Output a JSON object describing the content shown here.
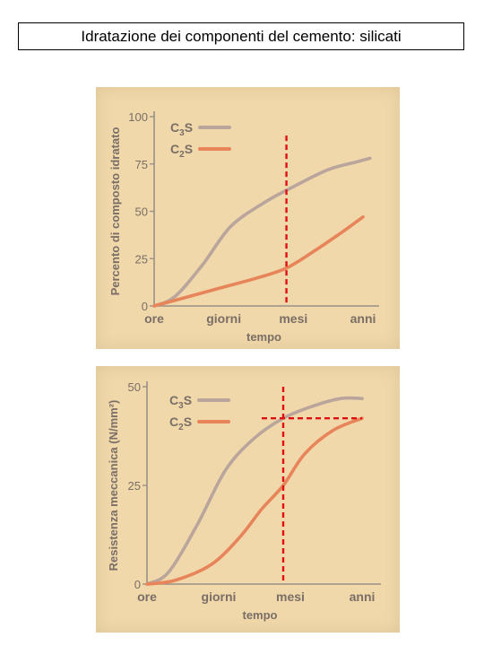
{
  "title": "Idratazione dei componenti del cemento: silicati",
  "colors": {
    "panel_bg": "#f0d8aa",
    "axis": "#9a9088",
    "text": "#7a6e66",
    "c3s": "#b9a59b",
    "c2s": "#e8845a",
    "guide": "#e01010"
  },
  "chart_data": [
    {
      "type": "line",
      "ylabel": "Percento di composto idratato",
      "xlabel": "tempo",
      "x_categories": [
        "ore",
        "giorni",
        "mesi",
        "anni"
      ],
      "yticks": [
        "0",
        "25",
        "50",
        "75",
        "100"
      ],
      "ylim": [
        0,
        100
      ],
      "xlim": [
        0,
        3
      ],
      "grid": false,
      "legend": "top-left",
      "series": [
        {
          "name": "C3S",
          "name_base": "C",
          "name_sub": "3",
          "name_tail": "S",
          "color": "#b9a59b",
          "points": [
            [
              0,
              0
            ],
            [
              0.3,
              5
            ],
            [
              0.7,
              22
            ],
            [
              1.1,
              42
            ],
            [
              1.6,
              55
            ],
            [
              2.0,
              63
            ],
            [
              2.5,
              72
            ],
            [
              2.9,
              76
            ],
            [
              3.1,
              78
            ]
          ]
        },
        {
          "name": "C2S",
          "name_base": "C",
          "name_sub": "2",
          "name_tail": "S",
          "color": "#e8845a",
          "points": [
            [
              0,
              0
            ],
            [
              0.4,
              4
            ],
            [
              0.9,
              9
            ],
            [
              1.5,
              15
            ],
            [
              1.9,
              20
            ],
            [
              2.3,
              29
            ],
            [
              2.7,
              39
            ],
            [
              3.0,
              47
            ]
          ]
        }
      ],
      "guides": [
        {
          "type": "vertical",
          "x": 1.9,
          "y_from": 0,
          "y_to": 90
        }
      ]
    },
    {
      "type": "line",
      "ylabel": "Resistenza meccanica (N/mm²)",
      "xlabel": "tempo",
      "x_categories": [
        "ore",
        "giorni",
        "mesi",
        "anni"
      ],
      "yticks": [
        "0",
        "25",
        "50"
      ],
      "ylim": [
        0,
        50
      ],
      "xlim": [
        0,
        3
      ],
      "grid": false,
      "legend": "top-left",
      "series": [
        {
          "name": "C3S",
          "name_base": "C",
          "name_sub": "3",
          "name_tail": "S",
          "color": "#b9a59b",
          "points": [
            [
              0,
              0
            ],
            [
              0.3,
              3
            ],
            [
              0.7,
              15
            ],
            [
              1.1,
              29
            ],
            [
              1.5,
              37
            ],
            [
              1.9,
              42
            ],
            [
              2.3,
              45
            ],
            [
              2.7,
              47
            ],
            [
              3.0,
              47
            ]
          ]
        },
        {
          "name": "C2S",
          "name_base": "C",
          "name_sub": "2",
          "name_tail": "S",
          "color": "#e8845a",
          "points": [
            [
              0,
              0
            ],
            [
              0.4,
              1
            ],
            [
              0.9,
              5
            ],
            [
              1.3,
              12
            ],
            [
              1.6,
              19
            ],
            [
              1.9,
              25
            ],
            [
              2.2,
              33
            ],
            [
              2.6,
              39
            ],
            [
              3.0,
              42
            ]
          ]
        }
      ],
      "guides": [
        {
          "type": "vertical",
          "x": 1.9,
          "y_from": 0,
          "y_to": 50
        },
        {
          "type": "horizontal",
          "y": 42,
          "x_from": 1.6,
          "x_to": 3.0
        }
      ]
    }
  ]
}
